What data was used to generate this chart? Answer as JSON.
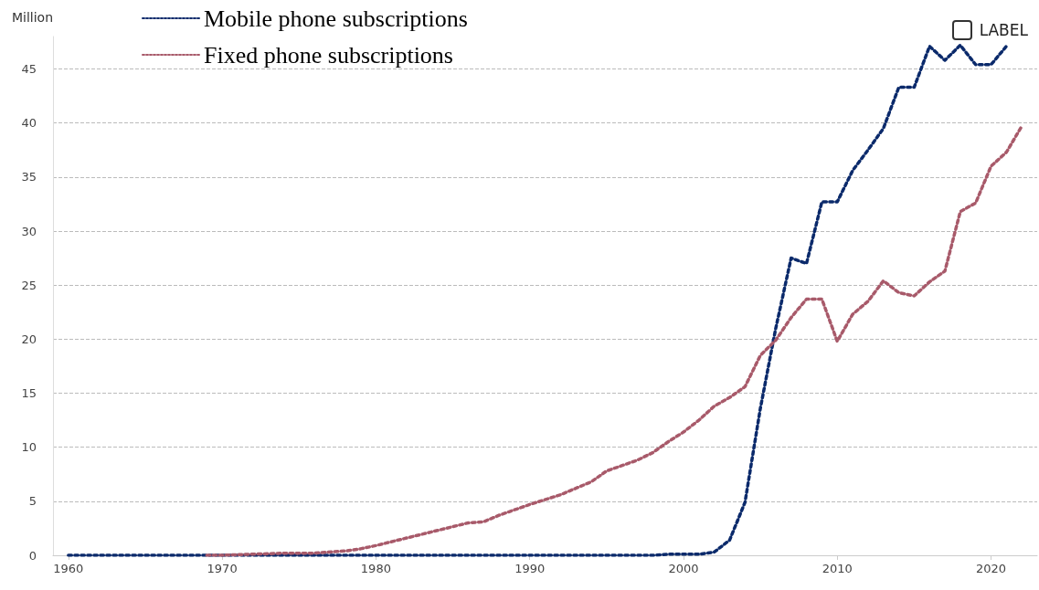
{
  "chart_data": {
    "type": "line",
    "ylabel": "Million",
    "annotations": [
      "LABEL"
    ],
    "xlim": [
      1959,
      2023
    ],
    "xticks": [
      1960,
      1970,
      1980,
      1990,
      2000,
      2010,
      2020
    ],
    "ylim": [
      0,
      48
    ],
    "yticks": [
      0,
      5,
      10,
      15,
      20,
      25,
      30,
      35,
      40,
      45
    ],
    "grid": "y",
    "legend": "top left",
    "marker": "none",
    "line_style": "dotted",
    "series": [
      {
        "name": "Mobile phone subscriptions",
        "color": "#0b2a6b",
        "x": [
          1960,
          1965,
          1970,
          1975,
          1976,
          1977,
          1978,
          1979,
          1980,
          1981,
          1982,
          1983,
          1984,
          1985,
          1986,
          1987,
          1988,
          1989,
          1990,
          1991,
          1992,
          1993,
          1994,
          1995,
          1996,
          1997,
          1998,
          1999,
          2000,
          2001,
          2002,
          2003,
          2004,
          2005,
          2006,
          2007,
          2008,
          2009,
          2010,
          2011,
          2012,
          2013,
          2014,
          2015,
          2016,
          2017,
          2018,
          2019,
          2020,
          2021
        ],
        "values": [
          0,
          0,
          0,
          0,
          0,
          0,
          0,
          0,
          0,
          0,
          0,
          0,
          0,
          0,
          0,
          0,
          0,
          0,
          0,
          0,
          0,
          0,
          0,
          0,
          0,
          0,
          0,
          0.1,
          0.1,
          0.1,
          0.3,
          1.4,
          4.9,
          13.6,
          21.0,
          27.5,
          27.0,
          32.7,
          32.7,
          35.6,
          37.5,
          39.5,
          43.3,
          43.3,
          47.1,
          45.8,
          47.2,
          45.4,
          45.4,
          47.1
        ]
      },
      {
        "name": "Fixed phone subscriptions",
        "color": "#a85a6a",
        "x": [
          1969,
          1970,
          1972,
          1974,
          1976,
          1978,
          1979,
          1980,
          1982,
          1984,
          1986,
          1987,
          1988,
          1990,
          1992,
          1994,
          1995,
          1997,
          1998,
          1999,
          2000,
          2001,
          2002,
          2003,
          2004,
          2005,
          2006,
          2007,
          2008,
          2009,
          2010,
          2011,
          2012,
          2013,
          2014,
          2015,
          2016,
          2017,
          2018,
          2019,
          2020,
          2021,
          2022
        ],
        "values": [
          0,
          0,
          0.1,
          0.2,
          0.2,
          0.4,
          0.6,
          0.9,
          1.6,
          2.3,
          3.0,
          3.1,
          3.7,
          4.7,
          5.6,
          6.8,
          7.8,
          8.8,
          9.5,
          10.5,
          11.4,
          12.5,
          13.8,
          14.6,
          15.6,
          18.5,
          19.9,
          22.0,
          23.7,
          23.7,
          19.8,
          22.3,
          23.5,
          25.4,
          24.3,
          24.0,
          25.3,
          26.3,
          31.8,
          32.6,
          36.0,
          37.3,
          39.7
        ]
      }
    ]
  }
}
